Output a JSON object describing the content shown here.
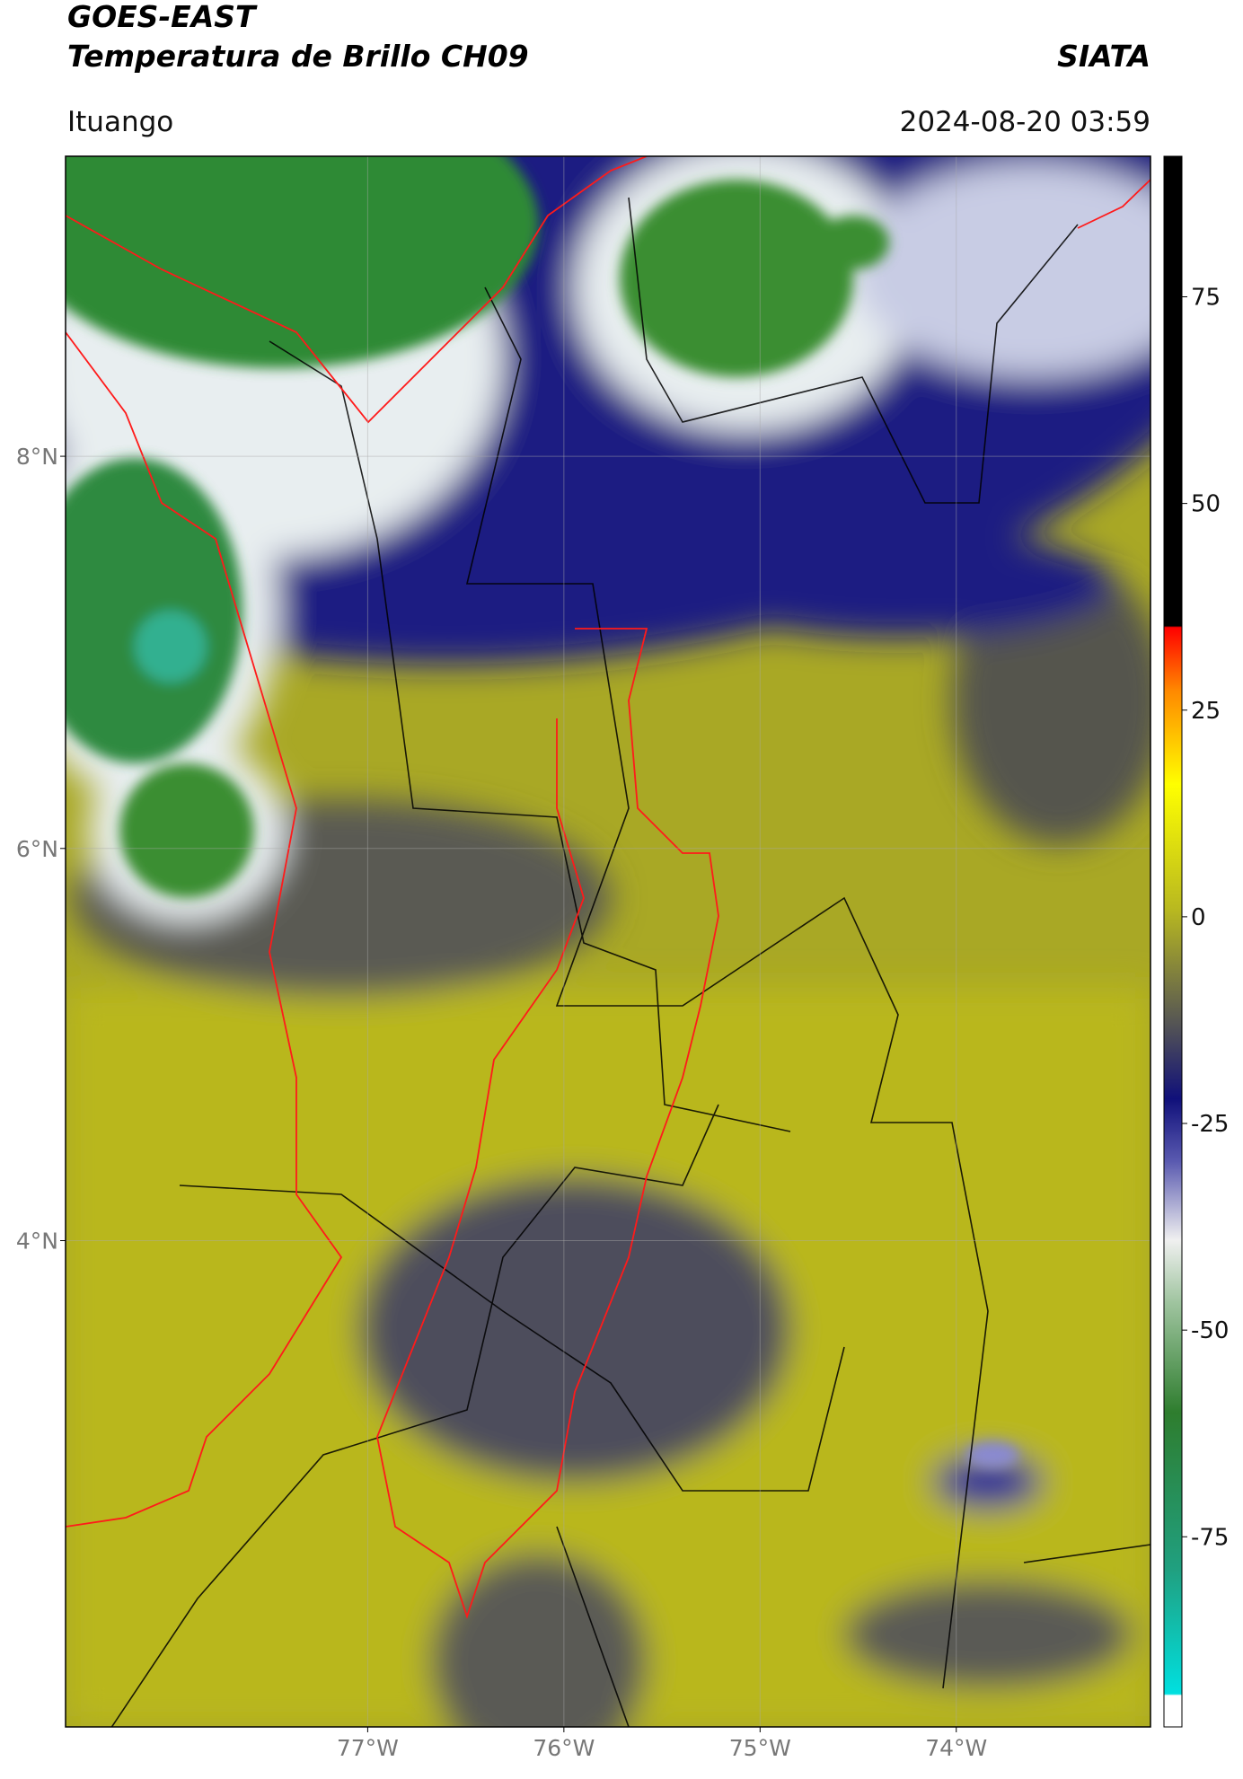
{
  "header": {
    "satellite": "GOES-EAST",
    "product": "Temperatura de Brillo CH09",
    "agency": "SIATA",
    "region": "Ituango",
    "datetime": "2024-08-20 03:59"
  },
  "map": {
    "type": "map",
    "xlim": [
      -78.54,
      -73.01
    ],
    "ylim": [
      1.52,
      9.53
    ],
    "xticks": [
      {
        "value": -77,
        "label": "77°W"
      },
      {
        "value": -76,
        "label": "76°W"
      },
      {
        "value": -75,
        "label": "75°W"
      },
      {
        "value": -74,
        "label": "74°W"
      }
    ],
    "yticks": [
      {
        "value": 8,
        "label": "8°N"
      },
      {
        "value": 6,
        "label": "6°N"
      },
      {
        "value": 4,
        "label": "4°N"
      }
    ],
    "grid": true
  },
  "colorbar": {
    "lim": [
      -98,
      92
    ],
    "ticks": [
      75,
      50,
      25,
      0,
      -25,
      -50,
      -75
    ]
  }
}
